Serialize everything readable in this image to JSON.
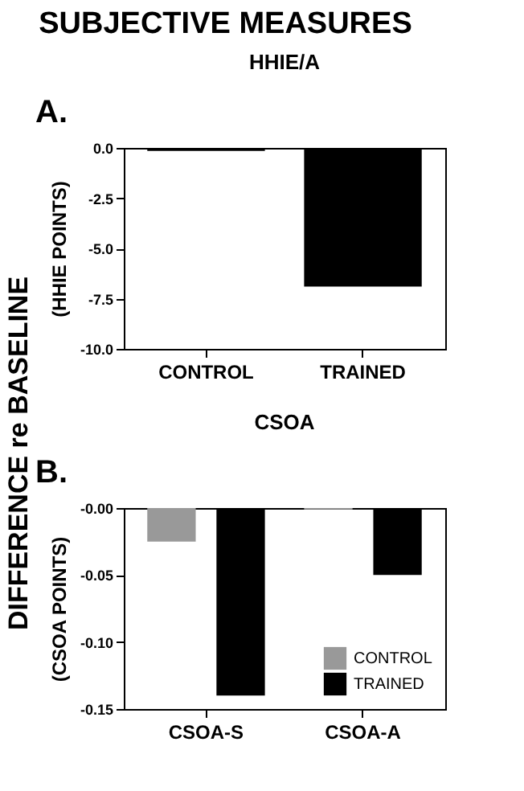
{
  "chart_data": [
    {
      "type": "bar",
      "title": "HHIE/A",
      "ylabel": "(HHIE POINTS)",
      "annotations": [
        "SUBJECTIVE MEASURES",
        "DIFFERENCE re BASELINE",
        "A."
      ],
      "categories": [
        "CONTROL",
        "TRAINED"
      ],
      "values": [
        -0.15,
        -6.9
      ],
      "color": "#000000",
      "ylim": [
        -10,
        0
      ],
      "yticks": [
        {
          "value": 0,
          "label": "0.0"
        },
        -2.5,
        {
          "value": -5,
          "label": "-5.0"
        },
        {
          "value": -7.5,
          "label": "-7.5"
        },
        {
          "value": -10,
          "label": "-10.0"
        }
      ],
      "grid": false
    },
    {
      "type": "bar",
      "title": "CSOA",
      "ylabel": "(CSOA POINTS)",
      "annotations": [
        "B."
      ],
      "categories": [
        "CSOA-S",
        "CSOA-A"
      ],
      "series": [
        {
          "name": "CONTROL",
          "color": "#999999",
          "values": [
            -0.025,
            -0.001
          ]
        },
        {
          "name": "TRAINED",
          "color": "#000000",
          "values": [
            -0.14,
            -0.05
          ]
        }
      ],
      "ylim": [
        -0.15,
        0
      ],
      "yticks": [
        {
          "value": 0,
          "label": "-0.00"
        },
        -0.05,
        {
          "value": -0.1,
          "label": "-0.10"
        },
        -0.15
      ],
      "legend": "bottom right",
      "grid": false
    }
  ]
}
